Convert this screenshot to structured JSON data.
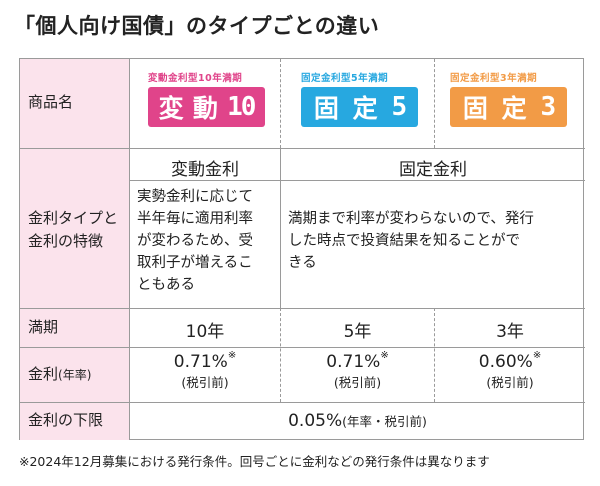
{
  "title": "「個人向け国債」のタイプごとの違い",
  "colors": {
    "header_bg": "#fbe3ec",
    "hendo": "#e0448a",
    "kotei5": "#27a8e0",
    "kotei3": "#f29b46"
  },
  "row_headers": {
    "product": "商品名",
    "rate_type_line1": "金利タイプと",
    "rate_type_line2": "金利の特徴",
    "maturity": "満期",
    "rate": "金利",
    "rate_note": "(年率)",
    "floor": "金利の下限"
  },
  "products": [
    {
      "sub": "変動金利型10年満期",
      "k1": "変",
      "k2": "動",
      "num": "10"
    },
    {
      "sub": "固定金利型5年満期",
      "k1": "固",
      "k2": "定",
      "num": "5"
    },
    {
      "sub": "固定金利型3年満期",
      "k1": "固",
      "k2": "定",
      "num": "3"
    }
  ],
  "rate_types": {
    "floating": "変動金利",
    "fixed": "固定金利"
  },
  "features": {
    "floating": [
      "実勢金利に応じて",
      "半年毎に適用利率",
      "が変わるため、受",
      "取利子が増えるこ",
      "ともある"
    ],
    "fixed": [
      "満期まで利率が変わらないので、発行",
      "した時点で投資結果を知ることがで",
      "きる"
    ]
  },
  "maturities": [
    "10年",
    "5年",
    "3年"
  ],
  "rates": [
    {
      "value": "0.71%",
      "mark": "※",
      "note": "(税引前)"
    },
    {
      "value": "0.71%",
      "mark": "※",
      "note": "(税引前)"
    },
    {
      "value": "0.60%",
      "mark": "※",
      "note": "(税引前)"
    }
  ],
  "floor": {
    "value": "0.05%",
    "note": "(年率・税引前)"
  },
  "footnote": "※2024年12月募集における発行条件。回号ごとに金利などの発行条件は異なります"
}
